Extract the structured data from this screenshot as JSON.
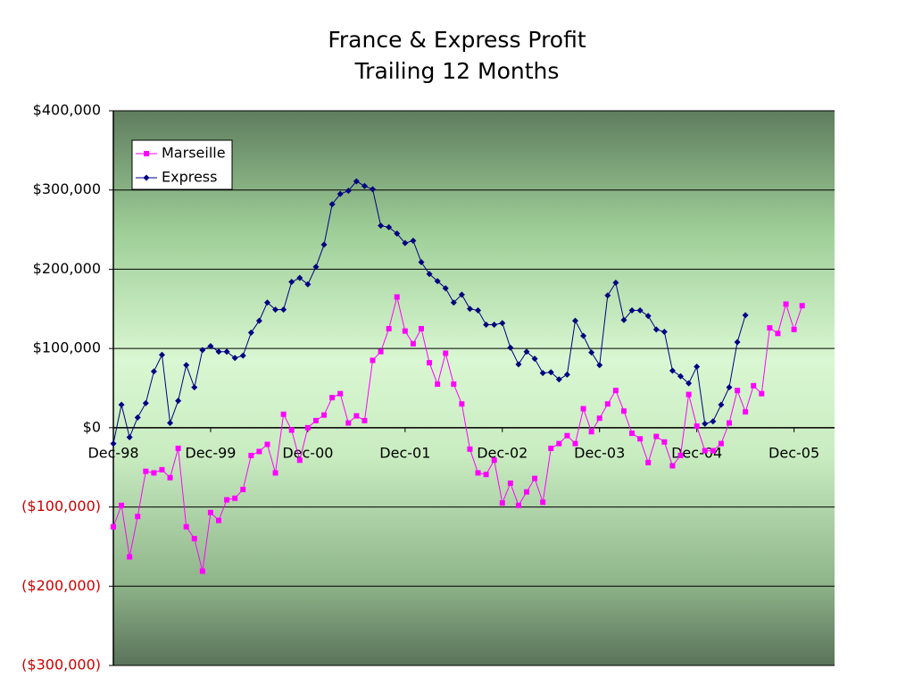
{
  "chart_data": {
    "type": "line",
    "title": "France & Express Profit",
    "subtitle": "Trailing 12 Months",
    "categories": [
      "Dec-98",
      null,
      null,
      null,
      null,
      null,
      null,
      null,
      null,
      null,
      null,
      null,
      "Dec-99",
      null,
      null,
      null,
      null,
      null,
      null,
      null,
      null,
      null,
      null,
      null,
      "Dec-00",
      null,
      null,
      null,
      null,
      null,
      null,
      null,
      null,
      null,
      null,
      null,
      "Dec-01",
      null,
      null,
      null,
      null,
      null,
      null,
      null,
      null,
      null,
      null,
      null,
      "Dec-02",
      null,
      null,
      null,
      null,
      null,
      null,
      null,
      null,
      null,
      null,
      null,
      "Dec-03",
      null,
      null,
      null,
      null,
      null,
      null,
      null,
      null,
      null,
      null,
      null,
      "Dec-04",
      null,
      null,
      null,
      null,
      null,
      null,
      null,
      null,
      null,
      null,
      null,
      "Dec-05",
      null,
      null,
      null,
      null,
      null
    ],
    "series": [
      {
        "name": "Marseille",
        "color": "#ff00ff",
        "marker": "square",
        "values": [
          -125000,
          -98000,
          -163000,
          -112000,
          -55000,
          -57000,
          -53000,
          -63000,
          -26000,
          -125000,
          -140000,
          -181000,
          -107000,
          -117000,
          -91000,
          -89000,
          -78000,
          -35000,
          -30000,
          -21000,
          -57000,
          17000,
          -3000,
          -41000,
          0,
          9000,
          16000,
          38000,
          43000,
          6000,
          15000,
          9000,
          85000,
          96000,
          125000,
          165000,
          122000,
          106000,
          125000,
          82000,
          55000,
          94000,
          55000,
          30000,
          -27000,
          -57000,
          -59000,
          -41000,
          -95000,
          -70000,
          -98000,
          -81000,
          -64000,
          -94000,
          -26000,
          -20000,
          -10000,
          -20000,
          24000,
          -5000,
          12000,
          30000,
          47000,
          21000,
          -7000,
          -14000,
          -44000,
          -11000,
          -18000,
          -48000,
          -35000,
          42000,
          2000,
          -29000,
          -29000,
          -20000,
          6000,
          47000,
          20000,
          53000,
          43000,
          126000,
          119000,
          156000,
          124000,
          154000,
          null,
          null,
          null,
          null
        ]
      },
      {
        "name": "Express",
        "color": "#000080",
        "marker": "diamond",
        "values": [
          -20000,
          29000,
          -12000,
          13000,
          31000,
          71000,
          92000,
          6000,
          34000,
          79000,
          51000,
          98000,
          103000,
          96000,
          96000,
          88000,
          91000,
          120000,
          135000,
          158000,
          149000,
          149000,
          184000,
          189000,
          181000,
          203000,
          231000,
          282000,
          295000,
          299000,
          311000,
          305000,
          301000,
          255000,
          253000,
          245000,
          233000,
          236000,
          209000,
          194000,
          185000,
          176000,
          158000,
          168000,
          150000,
          148000,
          130000,
          130000,
          132000,
          101000,
          80000,
          96000,
          87000,
          69000,
          70000,
          61000,
          67000,
          135000,
          116000,
          95000,
          79000,
          167000,
          183000,
          136000,
          148000,
          148000,
          141000,
          124000,
          121000,
          72000,
          65000,
          56000,
          77000,
          5000,
          8000,
          29000,
          51000,
          108000,
          142000,
          null,
          null,
          null,
          null,
          null,
          null,
          null,
          null,
          null,
          null,
          null
        ]
      }
    ],
    "ylim": [
      -300000,
      400000
    ],
    "yticks": [
      {
        "value": 400000,
        "label": "$400,000"
      },
      {
        "value": 300000,
        "label": "$300,000"
      },
      {
        "value": 200000,
        "label": "$200,000"
      },
      {
        "value": 100000,
        "label": "$100,000"
      },
      {
        "value": 0,
        "label": "$0"
      },
      {
        "value": -100000,
        "label": "($100,000)"
      },
      {
        "value": -200000,
        "label": "($200,000)"
      },
      {
        "value": -300000,
        "label": "($300,000)"
      }
    ],
    "grid": true,
    "legend": "upper left"
  }
}
